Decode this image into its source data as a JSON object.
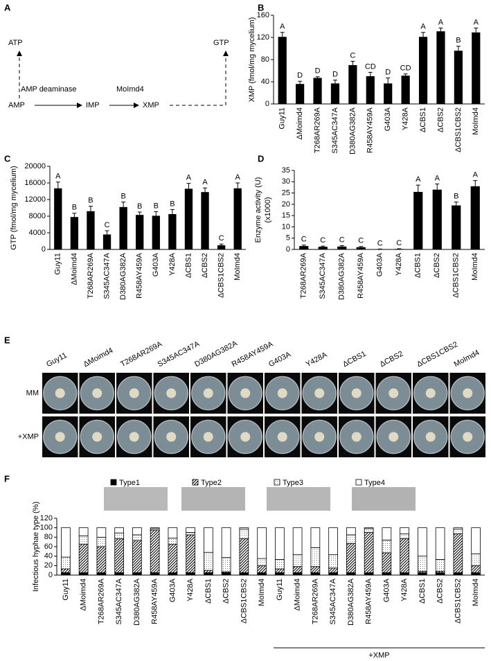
{
  "diagram": {
    "label": "A",
    "nodes": [
      "ATP",
      "GTP",
      "AMP",
      "IMP",
      "XMP"
    ],
    "edges": [
      "AMP deaminase",
      "MoImd4"
    ]
  },
  "plates": {
    "label": "E",
    "columns": [
      "Guy11",
      "ΔMoimd4",
      "T268AR269A",
      "S345AC347A",
      "D380AG382A",
      "R458AY459A",
      "G403A",
      "Y428A",
      "ΔCBS1",
      "ΔCBS2",
      "ΔCBS1CBS2",
      "MoImd4"
    ],
    "rows": [
      "MM",
      "+XMP"
    ]
  },
  "chart_data": [
    {
      "type": "bar",
      "label": "B",
      "y_label": [
        "XMP (fmol/mg mycelium)"
      ],
      "categories": [
        "Guy11",
        "ΔMoimd4",
        "T268AR269A",
        "S345AC347A",
        "D380AG382A",
        "R458AY459A",
        "G403A",
        "Y428A",
        "ΔCBS1",
        "ΔCBS2",
        "ΔCBS1CBS2",
        "MoImd4"
      ],
      "series": [
        {
          "color": "#000000",
          "values": [
            121,
            36,
            47,
            37,
            70,
            50,
            37,
            51,
            121,
            131,
            96,
            129
          ],
          "errors": [
            8,
            5,
            2,
            6,
            7,
            7,
            10,
            3,
            8,
            6,
            8,
            8
          ],
          "letters": [
            "A",
            "D",
            "D",
            "D",
            "C",
            "CD",
            "D",
            "CD",
            "A",
            "A",
            "B",
            "A"
          ]
        }
      ],
      "ylim": [
        0,
        160
      ],
      "yticks": [
        0,
        40,
        80,
        120,
        160
      ]
    },
    {
      "type": "bar",
      "label": "C",
      "y_label": [
        "GTP (fmol/mg mycelium)"
      ],
      "categories": [
        "Guy11",
        "ΔMoimd4",
        "T268AR269A",
        "S345AC347A",
        "D380AG382A",
        "R458AY459A",
        "G403A",
        "Y428A",
        "ΔCBS1",
        "ΔCBS2",
        "ΔCBS1CBS2",
        "MoImd4"
      ],
      "series": [
        {
          "color": "#000000",
          "values": [
            14700,
            7800,
            9200,
            3600,
            10200,
            8300,
            8100,
            8500,
            14600,
            13800,
            1000,
            14700
          ],
          "errors": [
            1500,
            900,
            1200,
            900,
            1200,
            700,
            1000,
            1100,
            1300,
            1000,
            300,
            1300
          ],
          "letters": [
            "A",
            "B",
            "B",
            "C",
            "B",
            "B",
            "B",
            "B",
            "A",
            "A",
            "C",
            "A"
          ]
        }
      ],
      "ylim": [
        0,
        20000
      ],
      "yticks": [
        0,
        4000,
        8000,
        12000,
        16000,
        20000
      ]
    },
    {
      "type": "bar",
      "label": "D",
      "y_label": [
        "Enzyme activity (U)",
        "(x1000)"
      ],
      "categories": [
        "T268AR269A",
        "S345AC347A",
        "D380AG382A",
        "R458AY459A",
        "G403A",
        "Y428A",
        "ΔCBS1",
        "ΔCBS2",
        "ΔCBS1CBS2",
        "MoImd4"
      ],
      "series": [
        {
          "color": "#000000",
          "values": [
            1.5,
            1.2,
            1.3,
            1.0,
            0.1,
            0.2,
            25.5,
            26.5,
            19.5,
            28
          ],
          "errors": [
            0.4,
            0.3,
            0.4,
            0.3,
            0.1,
            0.1,
            3,
            2.5,
            1.5,
            2.5
          ],
          "letters": [
            "C",
            "C",
            "C",
            "C",
            "C",
            "C",
            "A",
            "A",
            "B",
            "A"
          ]
        }
      ],
      "ylim": [
        0,
        35
      ],
      "yticks": [
        0,
        5,
        10,
        15,
        20,
        25,
        30,
        35
      ]
    },
    {
      "type": "stacked_bar",
      "label": "F",
      "y_label": [
        "Infectious hyphae type (%)"
      ],
      "group_label": "+XMP",
      "categories": [
        "Guy11",
        "ΔMoimd4",
        "T268AR269A",
        "S345AC347A",
        "D380AG382A",
        "R458AY459A",
        "G403A",
        "Y428A",
        "ΔCBS1",
        "ΔCBS2",
        "ΔCBS1CBS2",
        "MoImd4",
        "Guy11",
        "ΔMoimd4",
        "T268AR269A",
        "S345AC347A",
        "D380AG382A",
        "R458AY459A",
        "G403A",
        "Y428A",
        "ΔCBS1",
        "ΔCBS2",
        "ΔCBS1CBS2",
        "MoImd4"
      ],
      "series": [
        {
          "name": "Type1",
          "color": "#000000",
          "pattern": "solid",
          "values": [
            5,
            5,
            5,
            5,
            5,
            5,
            5,
            5,
            5,
            5,
            5,
            5,
            5,
            5,
            5,
            5,
            5,
            5,
            5,
            5,
            5,
            5,
            5,
            5
          ]
        },
        {
          "name": "Type2",
          "color": "#000000",
          "pattern": "hatch",
          "values": [
            8,
            60,
            55,
            72,
            68,
            90,
            60,
            80,
            5,
            2,
            72,
            15,
            8,
            13,
            13,
            10,
            62,
            85,
            42,
            72,
            3,
            3,
            82,
            15
          ]
        },
        {
          "name": "Type3",
          "color": "#000000",
          "pattern": "dots",
          "values": [
            25,
            18,
            20,
            12,
            12,
            3,
            13,
            5,
            38,
            30,
            20,
            15,
            20,
            25,
            40,
            28,
            18,
            8,
            27,
            10,
            32,
            25,
            10,
            25
          ]
        },
        {
          "name": "Type4",
          "color": "#ffffff",
          "pattern": "none",
          "values": [
            62,
            17,
            20,
            11,
            15,
            2,
            22,
            10,
            52,
            63,
            3,
            65,
            67,
            57,
            42,
            57,
            15,
            2,
            26,
            13,
            60,
            67,
            3,
            55
          ]
        }
      ],
      "ylim": [
        0,
        120
      ],
      "yticks": [
        0,
        20,
        40,
        60,
        80,
        100,
        120
      ]
    }
  ]
}
